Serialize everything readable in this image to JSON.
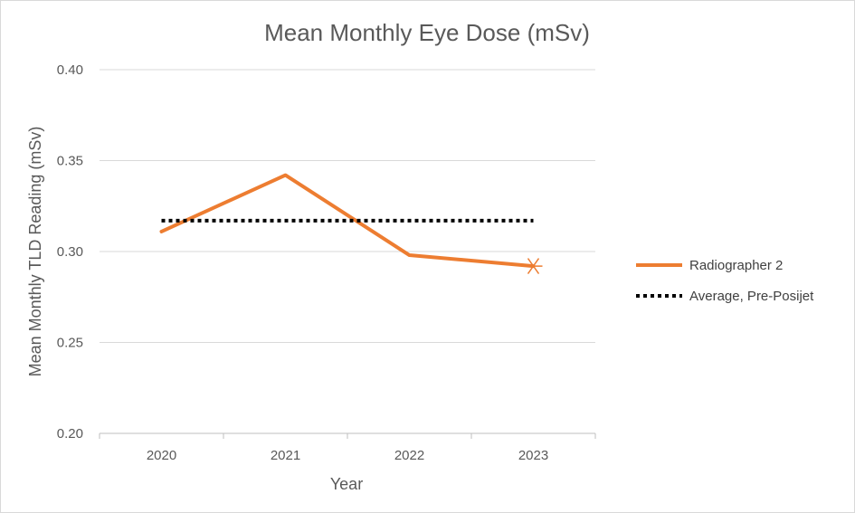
{
  "chart_data": {
    "type": "line",
    "title": "Mean Monthly Eye Dose (mSv)",
    "xlabel": "Year",
    "ylabel": "Mean Monthly  TLD Reading (mSv)",
    "categories": [
      "2020",
      "2021",
      "2022",
      "2023"
    ],
    "ylim": [
      0.2,
      0.4
    ],
    "yticks": [
      "0.20",
      "0.25",
      "0.30",
      "0.35",
      "0.40"
    ],
    "grid": true,
    "legend_position": "right",
    "series": [
      {
        "name": "Radiographer 2",
        "values": [
          0.311,
          0.342,
          0.298,
          0.292
        ],
        "color": "#ED7D31",
        "style": "solid",
        "last_marker": "asterisk"
      },
      {
        "name": "Average, Pre-Posijet",
        "values": [
          0.317,
          0.317,
          0.317,
          0.317
        ],
        "color": "#000000",
        "style": "dotted"
      }
    ]
  }
}
